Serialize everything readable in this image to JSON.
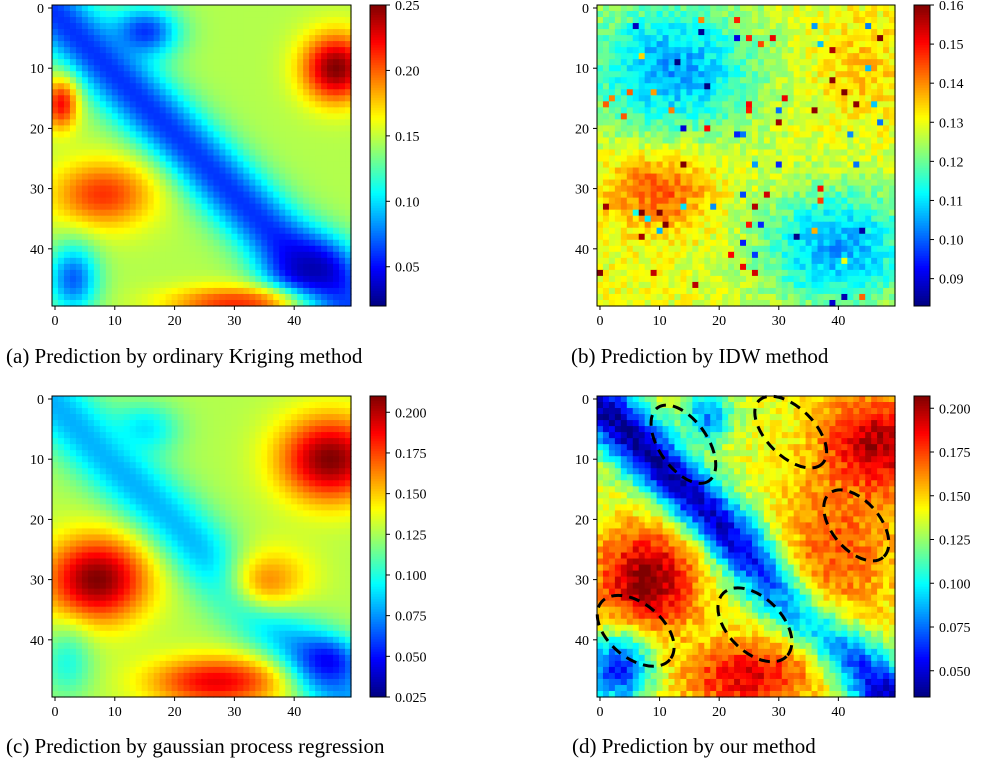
{
  "chart_data": [
    {
      "type": "heatmap",
      "caption": "(a) Prediction by ordinary Kriging method",
      "grid": [
        50,
        50
      ],
      "xticks": [
        "0",
        "10",
        "20",
        "30",
        "40"
      ],
      "yticks": [
        "0",
        "10",
        "20",
        "30",
        "40"
      ],
      "xlim": [
        0,
        49
      ],
      "ylim": [
        0,
        49
      ],
      "colorbar": {
        "min": 0.02,
        "max": 0.25,
        "ticks": [
          "0.25",
          "0.20",
          "0.15",
          "0.10",
          "0.05"
        ],
        "tick_values": [
          0.25,
          0.2,
          0.15,
          0.1,
          0.05
        ]
      },
      "colormap": "jet",
      "smooth": true,
      "features": [
        {
          "x": 15,
          "y": 4,
          "v": 0.06,
          "sx": 4,
          "sy": 3
        },
        {
          "x": 47,
          "y": 10,
          "v": 0.25,
          "sx": 4,
          "sy": 4
        },
        {
          "x": 1,
          "y": 16,
          "v": 0.22,
          "sx": 2,
          "sy": 3
        },
        {
          "x": 8,
          "y": 31,
          "v": 0.21,
          "sx": 6,
          "sy": 4
        },
        {
          "x": 43,
          "y": 44,
          "v": 0.03,
          "sx": 5,
          "sy": 4
        },
        {
          "x": 30,
          "y": 49,
          "v": 0.21,
          "sx": 8,
          "sy": 2
        },
        {
          "x": 3,
          "y": 45,
          "v": 0.07,
          "sx": 3,
          "sy": 4
        }
      ],
      "band": {
        "v": 0.06,
        "offset": 1,
        "width": 4
      }
    },
    {
      "type": "heatmap",
      "caption": "(b) Prediction by IDW method",
      "grid": [
        50,
        50
      ],
      "xticks": [
        "0",
        "10",
        "20",
        "30",
        "40"
      ],
      "yticks": [
        "0",
        "10",
        "20",
        "30",
        "40"
      ],
      "xlim": [
        0,
        49
      ],
      "ylim": [
        0,
        49
      ],
      "colorbar": {
        "min": 0.083,
        "max": 0.16,
        "ticks": [
          "0.16",
          "0.15",
          "0.14",
          "0.13",
          "0.12",
          "0.11",
          "0.10",
          "0.09"
        ],
        "tick_values": [
          0.16,
          0.15,
          0.14,
          0.13,
          0.12,
          0.11,
          0.1,
          0.09
        ]
      },
      "colormap": "jet",
      "smooth": false,
      "features": [
        {
          "x": 10,
          "y": 30,
          "v": 0.145,
          "sx": 6,
          "sy": 5
        },
        {
          "x": 12,
          "y": 10,
          "v": 0.105,
          "sx": 10,
          "sy": 8
        },
        {
          "x": 40,
          "y": 40,
          "v": 0.105,
          "sx": 9,
          "sy": 7
        },
        {
          "x": 44,
          "y": 10,
          "v": 0.135,
          "sx": 5,
          "sy": 6
        }
      ],
      "band": null
    },
    {
      "type": "heatmap",
      "caption": "(c) Prediction by gaussian process regression",
      "grid": [
        50,
        50
      ],
      "xticks": [
        "0",
        "10",
        "20",
        "30",
        "40"
      ],
      "yticks": [
        "0",
        "10",
        "20",
        "30",
        "40"
      ],
      "xlim": [
        0,
        49
      ],
      "ylim": [
        0,
        49
      ],
      "colorbar": {
        "min": 0.025,
        "max": 0.21,
        "ticks": [
          "0.200",
          "0.175",
          "0.150",
          "0.125",
          "0.100",
          "0.075",
          "0.050",
          "0.025"
        ],
        "tick_values": [
          0.2,
          0.175,
          0.15,
          0.125,
          0.1,
          0.075,
          0.05,
          0.025
        ]
      },
      "colormap": "jet",
      "smooth": true,
      "features": [
        {
          "x": 15,
          "y": 5,
          "v": 0.09,
          "sx": 4,
          "sy": 3
        },
        {
          "x": 46,
          "y": 10,
          "v": 0.21,
          "sx": 6,
          "sy": 5
        },
        {
          "x": 7,
          "y": 30,
          "v": 0.21,
          "sx": 6,
          "sy": 5
        },
        {
          "x": 45,
          "y": 44,
          "v": 0.04,
          "sx": 4,
          "sy": 3
        },
        {
          "x": 27,
          "y": 47,
          "v": 0.19,
          "sx": 8,
          "sy": 3
        },
        {
          "x": 36,
          "y": 30,
          "v": 0.16,
          "sx": 5,
          "sy": 4
        },
        {
          "x": 2,
          "y": 44,
          "v": 0.1,
          "sx": 3,
          "sy": 4
        }
      ],
      "band": {
        "v": 0.08,
        "offset": 1,
        "width": 4
      }
    },
    {
      "type": "heatmap",
      "caption": "(d) Prediction by our method",
      "grid": [
        50,
        50
      ],
      "xticks": [
        "0",
        "10",
        "20",
        "30",
        "40"
      ],
      "yticks": [
        "0",
        "10",
        "20",
        "30",
        "40"
      ],
      "xlim": [
        0,
        49
      ],
      "ylim": [
        0,
        49
      ],
      "colorbar": {
        "min": 0.035,
        "max": 0.207,
        "ticks": [
          "0.200",
          "0.175",
          "0.150",
          "0.125",
          "0.100",
          "0.075",
          "0.050"
        ],
        "tick_values": [
          0.2,
          0.175,
          0.15,
          0.125,
          0.1,
          0.075,
          0.05
        ]
      },
      "colormap": "jet",
      "smooth": false,
      "features": [
        {
          "x": 46,
          "y": 8,
          "v": 0.205,
          "sx": 6,
          "sy": 6
        },
        {
          "x": 8,
          "y": 30,
          "v": 0.205,
          "sx": 6,
          "sy": 6
        },
        {
          "x": 25,
          "y": 46,
          "v": 0.19,
          "sx": 8,
          "sy": 4
        },
        {
          "x": 40,
          "y": 25,
          "v": 0.17,
          "sx": 7,
          "sy": 10
        },
        {
          "x": 3,
          "y": 45,
          "v": 0.06,
          "sx": 4,
          "sy": 4
        },
        {
          "x": 18,
          "y": 3,
          "v": 0.08,
          "sx": 3,
          "sy": 3
        }
      ],
      "band": {
        "v": 0.04,
        "offset": 1,
        "width": 3.5
      },
      "ellipses": [
        {
          "cx": 14,
          "cy": 7.5,
          "rx": 7.5,
          "ry": 4,
          "angle": 55
        },
        {
          "cx": 32,
          "cy": 5.5,
          "rx": 7.5,
          "ry": 4,
          "angle": 45
        },
        {
          "cx": 43,
          "cy": 21,
          "rx": 7,
          "ry": 4,
          "angle": 50
        },
        {
          "cx": 6,
          "cy": 38.5,
          "rx": 7.5,
          "ry": 4.5,
          "angle": 40
        },
        {
          "cx": 26,
          "cy": 37.5,
          "rx": 7.5,
          "ry": 4.5,
          "angle": 45
        }
      ]
    }
  ]
}
